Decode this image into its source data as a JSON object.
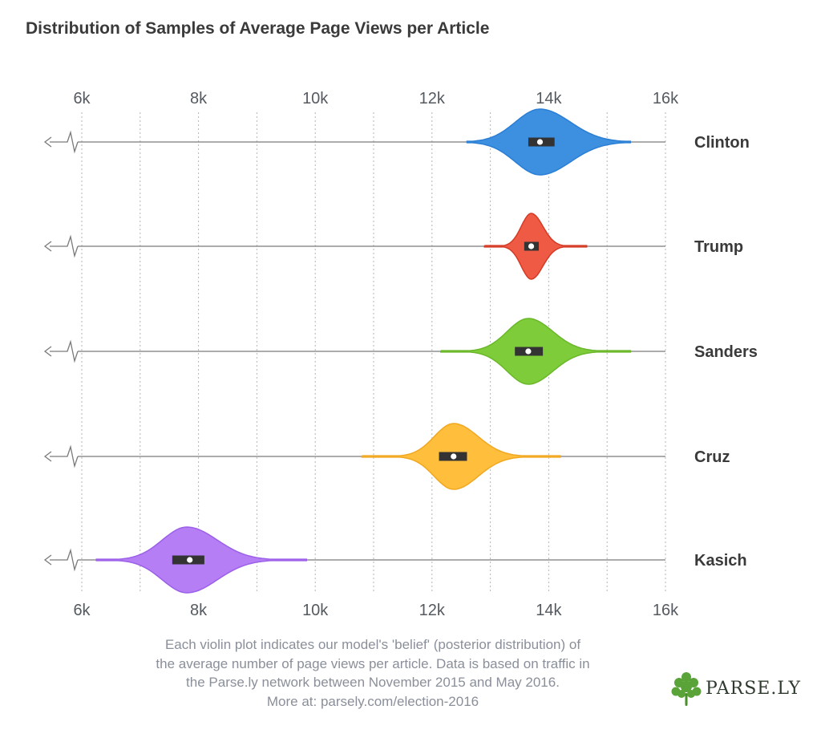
{
  "chart_data": {
    "type": "violin",
    "title": "Distribution of Samples of Average Page Views per Article",
    "xlim": [
      6000,
      16000
    ],
    "xticks": [
      6000,
      8000,
      10000,
      12000,
      14000,
      16000
    ],
    "xtick_labels": [
      "6k",
      "8k",
      "10k",
      "12k",
      "14k",
      "16k"
    ],
    "axis_break": true,
    "grid": true,
    "series": [
      {
        "name": "Clinton",
        "color": "#3d8fe0",
        "edge": "#2a7fd4",
        "range": [
          12600,
          15400
        ],
        "peak": 13850,
        "sd_left": 420,
        "sd_right": 520,
        "median": 13850,
        "q1": 13650,
        "q3": 14100
      },
      {
        "name": "Trump",
        "color": "#ef5a45",
        "edge": "#d43a26",
        "range": [
          12900,
          14650
        ],
        "peak": 13700,
        "sd_left": 170,
        "sd_right": 200,
        "median": 13700,
        "q1": 13580,
        "q3": 13830
      },
      {
        "name": "Sanders",
        "color": "#7fcc3a",
        "edge": "#6ab82a",
        "range": [
          12150,
          15400
        ],
        "peak": 13650,
        "sd_left": 360,
        "sd_right": 420,
        "median": 13650,
        "q1": 13420,
        "q3": 13900
      },
      {
        "name": "Cruz",
        "color": "#ffbe3c",
        "edge": "#f0a820",
        "range": [
          10800,
          14200
        ],
        "peak": 12370,
        "sd_left": 330,
        "sd_right": 420,
        "median": 12370,
        "q1": 12120,
        "q3": 12600
      },
      {
        "name": "Kasich",
        "color": "#b57ef5",
        "edge": "#9c5fe8",
        "range": [
          6250,
          9850
        ],
        "peak": 7800,
        "sd_left": 420,
        "sd_right": 520,
        "median": 7850,
        "q1": 7550,
        "q3": 8100
      }
    ]
  },
  "caption": {
    "lines": [
      "Each violin plot indicates our model's 'belief' (posterior distribution) of",
      "the average number of page views per article. Data is based on traffic in",
      "the Parse.ly network between November 2015 and May 2016.",
      "More at: parsely.com/election-2016"
    ]
  },
  "logo": {
    "text": "PARSE.LY",
    "icon": "parsely-leaf-icon"
  }
}
